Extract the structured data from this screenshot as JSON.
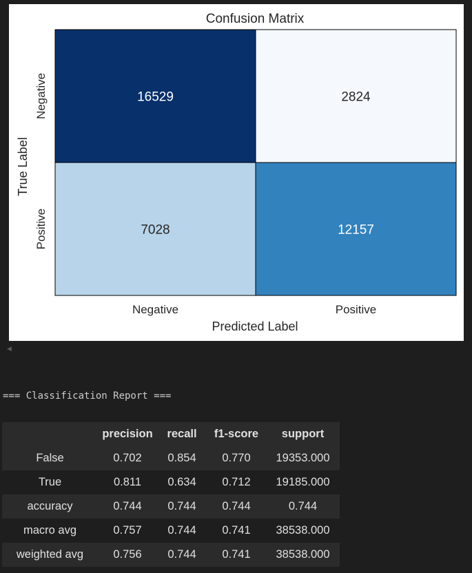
{
  "chart_data": {
    "type": "heatmap",
    "title": "Confusion Matrix",
    "xlabel": "Predicted Label",
    "ylabel": "True Label",
    "x_tick_labels": [
      "Negative",
      "Positive"
    ],
    "y_tick_labels": [
      "Negative",
      "Positive"
    ],
    "values": [
      [
        16529,
        2824
      ],
      [
        7028,
        12157
      ]
    ],
    "colormap": "Blues",
    "colors": {
      "cell_0_0": "#08306b",
      "cell_0_1": "#f5f9fe",
      "cell_1_0": "#b7d4ea",
      "cell_1_1": "#3282be"
    },
    "cell_text_colors": {
      "dark": "#ffffff",
      "light": "#262626"
    }
  },
  "report": {
    "heading": "=== Classification Report ===",
    "columns": [
      "",
      "precision",
      "recall",
      "f1-score",
      "support"
    ],
    "rows": [
      [
        "False",
        "0.702",
        "0.854",
        "0.770",
        "19353.000"
      ],
      [
        "True",
        "0.811",
        "0.634",
        "0.712",
        "19185.000"
      ],
      [
        "accuracy",
        "0.744",
        "0.744",
        "0.744",
        "0.744"
      ],
      [
        "macro avg",
        "0.757",
        "0.744",
        "0.741",
        "38538.000"
      ],
      [
        "weighted avg",
        "0.756",
        "0.744",
        "0.741",
        "38538.000"
      ]
    ]
  },
  "scroll_indicator_icon": "left-arrow-icon"
}
